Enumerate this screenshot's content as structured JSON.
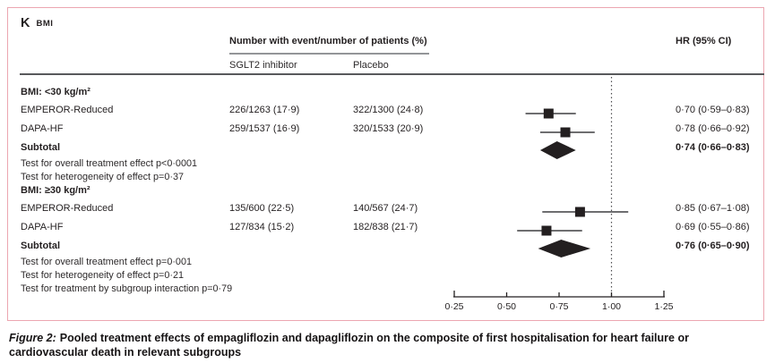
{
  "panel": {
    "letter": "K",
    "title": "BMI"
  },
  "columns": {
    "group_header": "Number with event/number of patients (%)",
    "col1": "SGLT2 inhibitor",
    "col2": "Placebo",
    "hr_header": "HR (95% CI)"
  },
  "chart_data": {
    "type": "forest",
    "title": "K BMI",
    "x_axis": {
      "tick_labels": [
        "0·25",
        "0·50",
        "0·75",
        "1·00",
        "1·25"
      ],
      "tick_values": [
        0.25,
        0.5,
        0.75,
        1.0,
        1.25
      ],
      "min": 0.25,
      "max": 1.25,
      "reference_line": 1.0,
      "scale": "linear"
    },
    "groups": [
      {
        "label": "BMI: <30 kg/m²",
        "rows": [
          {
            "study": "EMPEROR-Reduced",
            "sglt2": "226/1263 (17·9)",
            "placebo": "322/1300 (24·8)",
            "hr_text": "0·70 (0·59–0·83)",
            "hr": 0.7,
            "lo": 0.59,
            "hi": 0.83
          },
          {
            "study": "DAPA-HF",
            "sglt2": "259/1537 (16·9)",
            "placebo": "320/1533 (20·9)",
            "hr_text": "0·78 (0·66–0·92)",
            "hr": 0.78,
            "lo": 0.66,
            "hi": 0.92
          }
        ],
        "subtotal": {
          "label": "Subtotal",
          "hr_text": "0·74 (0·66–0·83)",
          "hr": 0.74,
          "lo": 0.66,
          "hi": 0.83
        },
        "tests": [
          "Test for overall treatment effect p<0·0001",
          "Test for heterogeneity of effect p=0·37"
        ]
      },
      {
        "label": "BMI: ≥30 kg/m²",
        "rows": [
          {
            "study": "EMPEROR-Reduced",
            "sglt2": "135/600 (22·5)",
            "placebo": "140/567 (24·7)",
            "hr_text": "0·85 (0·67–1·08)",
            "hr": 0.85,
            "lo": 0.67,
            "hi": 1.08
          },
          {
            "study": "DAPA-HF",
            "sglt2": "127/834 (15·2)",
            "placebo": "182/838 (21·7)",
            "hr_text": "0·69 (0·55–0·86)",
            "hr": 0.69,
            "lo": 0.55,
            "hi": 0.86
          }
        ],
        "subtotal": {
          "label": "Subtotal",
          "hr_text": "0·76 (0·65–0·90)",
          "hr": 0.76,
          "lo": 0.65,
          "hi": 0.9
        },
        "tests": [
          "Test for overall treatment effect p=0·001",
          "Test for heterogeneity of effect p=0·21",
          "Test for treatment by subgroup interaction p=0·79"
        ]
      }
    ]
  },
  "caption": {
    "prefix": "Figure 2:",
    "text": "Pooled treatment effects of empagliflozin and dapagliflozin on the composite of first hospitalisation for heart failure or cardiovascular death in relevant subgroups"
  },
  "colors": {
    "panel_border": "#eca6b1",
    "rule_dark": "#58595b",
    "rule_gray": "#939598",
    "marker": "#231f20",
    "ci_line": "#3f3f41",
    "reference_line": "#4d4d4f",
    "text": "#231f20"
  }
}
